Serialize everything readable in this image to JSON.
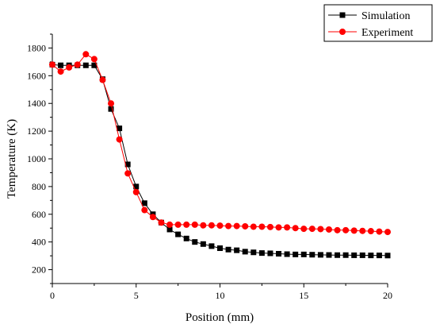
{
  "chart_data": {
    "type": "line",
    "xlabel": "Position (mm)",
    "ylabel": "Temperature (K)",
    "xlim": [
      0,
      20
    ],
    "ylim": [
      100,
      1900
    ],
    "xticks": [
      "0",
      "5",
      "10",
      "15",
      "20"
    ],
    "yticks": [
      "200",
      "400",
      "600",
      "800",
      "1000",
      "1200",
      "1400",
      "1600",
      "1800"
    ],
    "grid": false,
    "legend_position": "top-right",
    "series": [
      {
        "name": "Simulation",
        "color": "#000000",
        "marker": "square",
        "x": [
          0,
          0.5,
          1,
          1.5,
          2,
          2.5,
          3,
          3.5,
          4,
          4.5,
          5,
          5.5,
          6,
          6.5,
          7,
          7.5,
          8,
          8.5,
          9,
          9.5,
          10,
          10.5,
          11,
          11.5,
          12,
          12.5,
          13,
          13.5,
          14,
          14.5,
          15,
          15.5,
          16,
          16.5,
          17,
          17.5,
          18,
          18.5,
          19,
          19.5,
          20
        ],
        "y": [
          1680,
          1675,
          1675,
          1675,
          1675,
          1675,
          1575,
          1360,
          1220,
          960,
          800,
          680,
          600,
          540,
          490,
          455,
          425,
          400,
          385,
          370,
          355,
          345,
          340,
          330,
          325,
          320,
          318,
          315,
          312,
          310,
          310,
          308,
          307,
          306,
          305,
          305,
          304,
          304,
          303,
          303,
          302
        ]
      },
      {
        "name": "Experiment",
        "color": "#ff0000",
        "marker": "circle",
        "x": [
          0,
          0.5,
          1,
          1.5,
          2,
          2.5,
          3,
          3.5,
          4,
          4.5,
          5,
          5.5,
          6,
          6.5,
          7,
          7.5,
          8,
          8.5,
          9,
          9.5,
          10,
          10.5,
          11,
          11.5,
          12,
          12.5,
          13,
          13.5,
          14,
          14.5,
          15,
          15.5,
          16,
          16.5,
          17,
          17.5,
          18,
          18.5,
          19,
          19.5,
          20
        ],
        "y": [
          1680,
          1630,
          1660,
          1680,
          1755,
          1720,
          1570,
          1400,
          1140,
          895,
          760,
          630,
          580,
          540,
          525,
          525,
          525,
          525,
          520,
          520,
          518,
          515,
          515,
          513,
          510,
          510,
          508,
          505,
          505,
          500,
          495,
          495,
          493,
          490,
          485,
          485,
          482,
          480,
          478,
          475,
          472
        ]
      }
    ]
  }
}
